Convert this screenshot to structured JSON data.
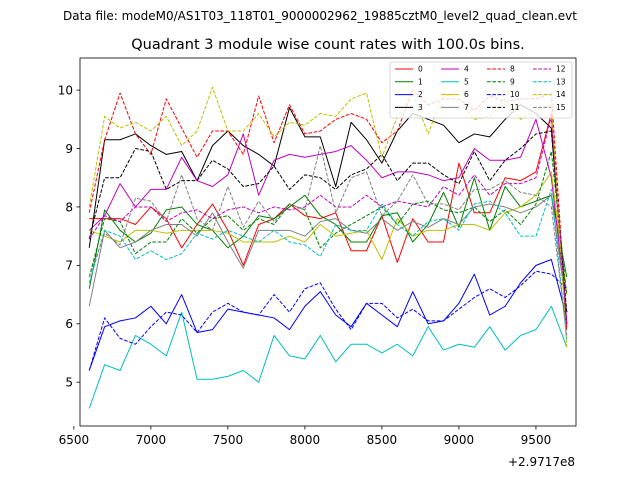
{
  "chart_data": {
    "type": "line",
    "suptitle": "Data file: modeM0/AS1T03_118T01_9000002962_19885cztM0_level2_quad_clean.evt",
    "title": "Quadrant 3 module wise count rates with 100.0s bins.",
    "xlabel": "",
    "ylabel": "",
    "x_offset_label": "+2.9717e8",
    "xlim": [
      6540,
      9760
    ],
    "ylim": [
      4.25,
      10.55
    ],
    "x_ticks": [
      6500,
      7000,
      7500,
      8000,
      8500,
      9000,
      9500
    ],
    "y_ticks": [
      5,
      6,
      7,
      8,
      9,
      10
    ],
    "x": [
      6600,
      6700,
      6800,
      6900,
      7000,
      7100,
      7200,
      7300,
      7400,
      7500,
      7600,
      7700,
      7800,
      7900,
      8000,
      8100,
      8200,
      8300,
      8400,
      8500,
      8600,
      8700,
      8800,
      8900,
      9000,
      9100,
      9200,
      9300,
      9400,
      9500,
      9600,
      9700
    ],
    "series": [
      {
        "name": "0",
        "color": "#ff0000",
        "dash": "solid",
        "values": [
          7.8,
          7.8,
          7.8,
          7.7,
          8.0,
          7.8,
          7.3,
          7.7,
          8.05,
          7.6,
          7.0,
          7.7,
          7.8,
          8.05,
          7.85,
          7.8,
          7.9,
          7.25,
          7.25,
          7.85,
          7.05,
          7.8,
          7.4,
          7.4,
          8.75,
          7.9,
          7.9,
          8.5,
          8.45,
          8.6,
          9.6,
          5.9
        ]
      },
      {
        "name": "1",
        "color": "#008000",
        "dash": "solid",
        "values": [
          6.6,
          7.95,
          7.6,
          7.4,
          7.55,
          7.95,
          8.0,
          7.7,
          7.6,
          7.3,
          7.5,
          7.85,
          7.8,
          8.0,
          8.2,
          7.85,
          7.7,
          7.4,
          7.4,
          7.85,
          7.9,
          7.4,
          7.7,
          8.25,
          7.65,
          8.5,
          7.6,
          8.35,
          8.0,
          8.1,
          8.2,
          6.8
        ]
      },
      {
        "name": "2",
        "color": "#0000ff",
        "dash": "solid",
        "values": [
          5.2,
          5.95,
          6.05,
          6.1,
          6.3,
          6.0,
          6.5,
          5.85,
          5.9,
          6.25,
          6.2,
          6.15,
          6.1,
          5.9,
          6.3,
          6.55,
          6.15,
          5.95,
          6.35,
          6.15,
          5.95,
          6.55,
          6.0,
          6.05,
          6.35,
          6.85,
          6.15,
          6.3,
          6.7,
          7.0,
          7.1,
          6.1
        ]
      },
      {
        "name": "3",
        "color": "#000000",
        "dash": "solid",
        "values": [
          7.3,
          9.15,
          9.15,
          9.25,
          9.05,
          8.9,
          8.95,
          8.45,
          9.05,
          9.3,
          9.05,
          8.9,
          8.7,
          9.7,
          9.2,
          9.2,
          8.35,
          9.45,
          9.15,
          8.75,
          9.3,
          9.6,
          9.5,
          9.4,
          9.1,
          9.25,
          9.2,
          9.5,
          9.75,
          9.6,
          9.35,
          6.0
        ]
      },
      {
        "name": "4",
        "color": "#c000c0",
        "dash": "solid",
        "values": [
          7.6,
          7.85,
          8.4,
          8.0,
          8.3,
          8.3,
          8.85,
          8.45,
          8.35,
          8.55,
          9.25,
          8.2,
          8.8,
          8.9,
          8.85,
          8.9,
          8.95,
          9.05,
          8.8,
          8.5,
          8.6,
          8.6,
          8.55,
          8.45,
          8.5,
          9.0,
          8.8,
          8.8,
          8.85,
          9.5,
          8.5,
          6.2
        ]
      },
      {
        "name": "5",
        "color": "#00bfbf",
        "dash": "solid",
        "values": [
          4.55,
          5.3,
          5.2,
          5.8,
          5.65,
          5.45,
          6.2,
          5.05,
          5.05,
          5.1,
          5.2,
          5.0,
          5.8,
          5.45,
          5.4,
          5.8,
          5.35,
          5.65,
          5.65,
          5.5,
          5.65,
          5.45,
          5.95,
          5.55,
          5.65,
          5.6,
          5.95,
          5.55,
          5.8,
          5.9,
          6.3,
          5.6
        ]
      },
      {
        "name": "6",
        "color": "#bfbf00",
        "dash": "solid",
        "values": [
          7.6,
          7.5,
          7.4,
          7.6,
          7.6,
          7.55,
          7.6,
          7.6,
          7.6,
          7.55,
          7.4,
          7.4,
          7.4,
          7.5,
          7.4,
          7.7,
          7.5,
          7.55,
          7.6,
          7.1,
          7.8,
          7.5,
          7.6,
          7.6,
          7.7,
          7.7,
          7.6,
          7.9,
          8.0,
          8.2,
          8.6,
          6.5
        ]
      },
      {
        "name": "7",
        "color": "#808080",
        "dash": "solid",
        "values": [
          6.3,
          7.6,
          7.3,
          7.4,
          7.6,
          7.7,
          7.7,
          7.5,
          7.9,
          7.4,
          6.95,
          7.6,
          7.6,
          7.6,
          7.5,
          7.75,
          7.8,
          7.6,
          7.55,
          7.8,
          7.6,
          7.75,
          7.65,
          7.8,
          7.7,
          8.0,
          8.05,
          8.0,
          7.9,
          8.0,
          8.2,
          6.2
        ]
      },
      {
        "name": "8",
        "color": "#ff0000",
        "dash": "dashed",
        "values": [
          7.9,
          9.15,
          9.95,
          9.25,
          8.9,
          9.85,
          9.35,
          8.85,
          9.3,
          9.3,
          8.9,
          9.9,
          9.1,
          9.75,
          9.25,
          9.3,
          9.5,
          9.6,
          9.5,
          9.1,
          9.3,
          10.0,
          9.75,
          9.85,
          9.85,
          9.65,
          9.9,
          9.8,
          9.85,
          9.85,
          9.95,
          6.0
        ]
      },
      {
        "name": "9",
        "color": "#008000",
        "dash": "dashed",
        "values": [
          6.8,
          7.8,
          7.75,
          7.2,
          7.4,
          7.4,
          7.8,
          7.55,
          7.8,
          7.85,
          7.6,
          7.8,
          7.7,
          8.05,
          7.95,
          7.3,
          7.55,
          7.7,
          7.85,
          8.0,
          7.7,
          8.05,
          8.1,
          7.95,
          7.9,
          8.0,
          7.75,
          7.95,
          7.7,
          8.05,
          8.95,
          6.5
        ]
      },
      {
        "name": "10",
        "color": "#0000ff",
        "dash": "dashed",
        "values": [
          5.2,
          6.1,
          5.75,
          5.65,
          5.95,
          6.2,
          6.15,
          5.85,
          6.2,
          6.35,
          6.2,
          6.15,
          6.5,
          6.2,
          6.6,
          6.7,
          6.25,
          5.9,
          6.35,
          6.35,
          6.1,
          6.25,
          6.05,
          6.05,
          6.25,
          6.45,
          6.6,
          6.45,
          6.65,
          6.9,
          6.85,
          6.6
        ]
      },
      {
        "name": "11",
        "color": "#000000",
        "dash": "dashed",
        "values": [
          7.45,
          8.5,
          8.5,
          9.0,
          8.95,
          8.3,
          8.45,
          8.45,
          8.8,
          8.65,
          8.35,
          8.4,
          8.7,
          8.3,
          8.55,
          8.5,
          8.3,
          8.55,
          8.65,
          8.9,
          8.45,
          8.75,
          8.75,
          8.55,
          8.4,
          8.95,
          8.45,
          8.8,
          9.0,
          9.25,
          9.3,
          6.2
        ]
      },
      {
        "name": "12",
        "color": "#c000c0",
        "dash": "dashed",
        "values": [
          7.45,
          7.85,
          7.75,
          8.0,
          8.0,
          7.75,
          7.9,
          7.95,
          7.8,
          7.95,
          8.0,
          7.9,
          8.0,
          7.95,
          8.0,
          8.2,
          8.0,
          8.0,
          8.2,
          8.0,
          8.1,
          8.05,
          8.0,
          8.35,
          8.2,
          8.55,
          8.2,
          8.4,
          8.4,
          8.5,
          9.55,
          6.0
        ]
      },
      {
        "name": "13",
        "color": "#00bfbf",
        "dash": "dashed",
        "values": [
          6.7,
          7.6,
          7.5,
          7.1,
          7.25,
          7.1,
          7.2,
          7.55,
          7.45,
          7.6,
          7.5,
          7.4,
          7.6,
          7.4,
          7.35,
          7.15,
          7.7,
          7.6,
          7.6,
          8.05,
          7.7,
          7.5,
          7.75,
          7.8,
          7.6,
          8.05,
          8.1,
          7.9,
          7.5,
          7.5,
          8.3,
          5.7
        ]
      },
      {
        "name": "14",
        "color": "#bfbf00",
        "dash": "dashed",
        "values": [
          8.0,
          9.55,
          9.35,
          9.45,
          9.3,
          9.55,
          9.05,
          9.3,
          10.05,
          9.3,
          9.3,
          9.6,
          9.2,
          9.45,
          9.4,
          9.6,
          9.55,
          9.85,
          9.95,
          8.85,
          9.55,
          9.95,
          9.25,
          9.95,
          9.8,
          9.5,
          9.55,
          9.85,
          9.5,
          9.65,
          9.75,
          5.6
        ]
      },
      {
        "name": "15",
        "color": "#808080",
        "dash": "dashed",
        "values": [
          6.8,
          7.55,
          7.35,
          8.15,
          8.1,
          7.75,
          8.55,
          7.8,
          7.6,
          8.35,
          7.65,
          8.1,
          7.75,
          8.05,
          7.95,
          9.05,
          7.9,
          8.5,
          8.6,
          7.85,
          8.1,
          8.55,
          8.05,
          8.05,
          7.95,
          8.3,
          8.3,
          8.45,
          8.25,
          8.2,
          8.0,
          5.8
        ]
      }
    ],
    "legend": {
      "placement": "top-right",
      "columns": 4
    }
  }
}
